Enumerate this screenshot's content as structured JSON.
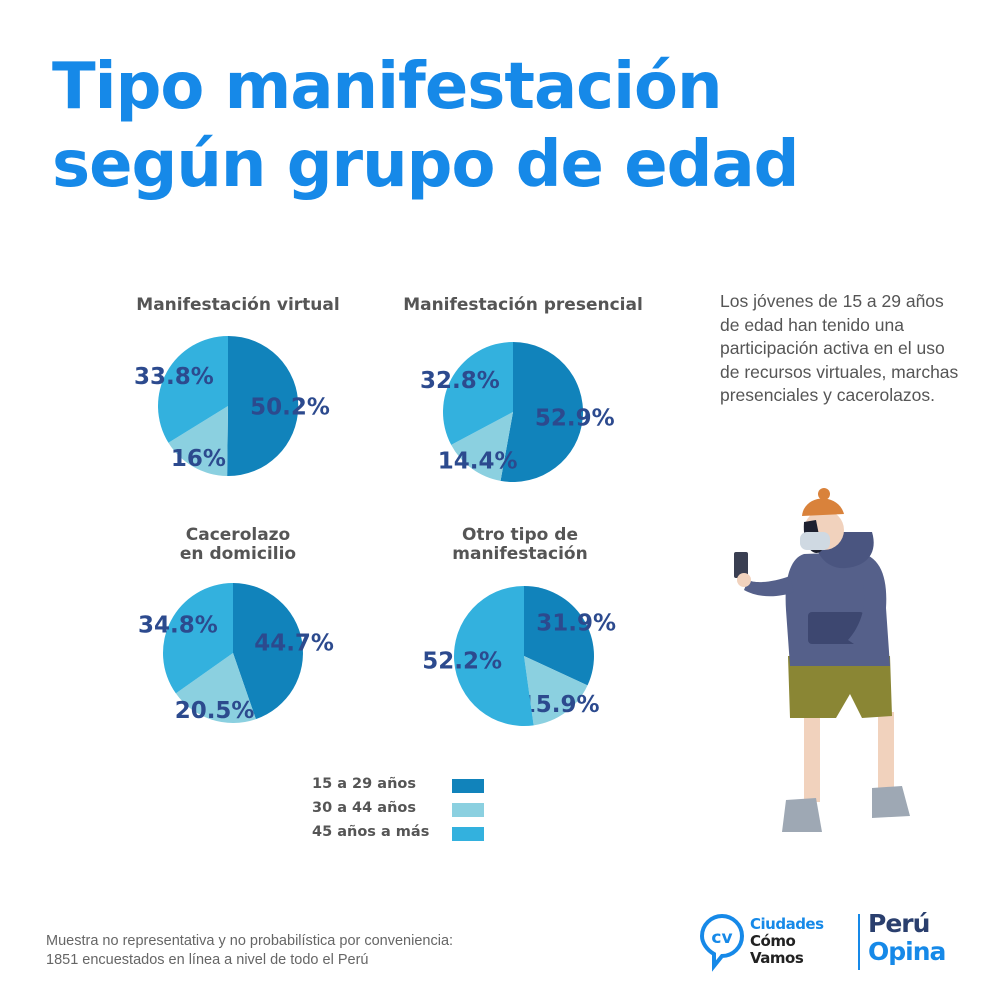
{
  "title": {
    "line1": "Tipo manifestación",
    "line2": "según grupo de edad"
  },
  "colors": {
    "15-29": "#1183bb",
    "30-44": "#8bd0e0",
    "45+": "#33b1de",
    "title": "#1689e8",
    "label": "#2c4a8e"
  },
  "chart_data": [
    {
      "type": "pie",
      "title": "Manifestación virtual",
      "title_lines": [
        "Manifestación virtual"
      ],
      "series": [
        {
          "name": "15 a 29 años",
          "value": 50.2,
          "label": "50.2%"
        },
        {
          "name": "30 a 44 años",
          "value": 16,
          "label": "16%"
        },
        {
          "name": "45 años a más",
          "value": 33.8,
          "label": "33.8%"
        }
      ]
    },
    {
      "type": "pie",
      "title": "Manifestación presencial",
      "title_lines": [
        "Manifestación presencial"
      ],
      "series": [
        {
          "name": "15 a 29 años",
          "value": 52.9,
          "label": "52.9%"
        },
        {
          "name": "30 a 44 años",
          "value": 14.4,
          "label": "14.4%"
        },
        {
          "name": "45 años a más",
          "value": 32.8,
          "label": "32.8%"
        }
      ]
    },
    {
      "type": "pie",
      "title": "Cacerolazo en domicilio",
      "title_lines": [
        "Cacerolazo",
        "en domicilio"
      ],
      "series": [
        {
          "name": "15 a 29 años",
          "value": 44.7,
          "label": "44.7%"
        },
        {
          "name": "30 a 44 años",
          "value": 20.5,
          "label": "20.5%"
        },
        {
          "name": "45 años a más",
          "value": 34.8,
          "label": "34.8%"
        }
      ]
    },
    {
      "type": "pie",
      "title": "Otro tipo de manifestación",
      "title_lines": [
        "Otro tipo de",
        "manifestación"
      ],
      "series": [
        {
          "name": "15 a 29 años",
          "value": 31.9,
          "label": "31.9%"
        },
        {
          "name": "30 a 44 años",
          "value": 15.9,
          "label": "15.9%"
        },
        {
          "name": "45 años a más",
          "value": 52.2,
          "label": "52.2%"
        }
      ]
    }
  ],
  "legend": [
    {
      "label": "15 a 29 años",
      "color": "#1183bb"
    },
    {
      "label": "30 a 44 años",
      "color": "#8bd0e0"
    },
    {
      "label": "45 años a más",
      "color": "#33b1de"
    }
  ],
  "description": "Los jóvenes de 15 a 29 años de edad han tenido una participación activa en el uso de recursos virtuales, marchas presenciales y cacerolazos.",
  "footnote": {
    "line1": "Muestra no representativa y no probabilística por conveniencia:",
    "line2": "1851 encuestados en línea a nivel de todo el Perú"
  },
  "logos": {
    "ccv_line1": "Ciudades",
    "ccv_line2": "Cómo",
    "ccv_line3": "Vamos",
    "peru_line1": "Perú",
    "peru_line2": "Opina"
  }
}
